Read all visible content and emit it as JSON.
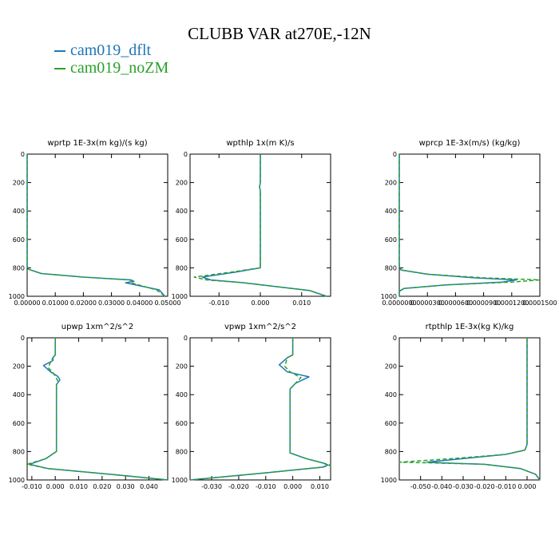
{
  "page": {
    "title": "CLUBB VAR at270E,-12N"
  },
  "legend": [
    {
      "label": "cam019_dflt",
      "color": "#1f77b4"
    },
    {
      "label": "cam019_noZM",
      "color": "#2ca02c"
    }
  ],
  "chart_data": [
    {
      "type": "line",
      "title": "wprtp  1E-3x(m kg)/(s kg)",
      "xlim": [
        0,
        0.05
      ],
      "ylim": [
        1000,
        0
      ],
      "xticks": [
        "0.00000",
        "0.01000",
        "0.02000",
        "0.03000",
        "0.04000",
        "0.05000"
      ],
      "xtick_values": [
        0,
        0.01,
        0.02,
        0.03,
        0.04,
        0.05
      ],
      "yticks": [
        0,
        200,
        400,
        600,
        800,
        1000
      ],
      "series": [
        {
          "name": "cam019_dflt",
          "color": "#1f77b4",
          "dash": false,
          "x": [
            0,
            0,
            0.0005,
            0.005,
            0.02,
            0.037,
            0.038,
            0.035,
            0.047,
            0.049
          ],
          "y": [
            0,
            790,
            810,
            840,
            865,
            885,
            895,
            905,
            955,
            1000
          ]
        },
        {
          "name": "cam019_noZM",
          "color": "#2ca02c",
          "dash": true,
          "x": [
            0,
            0,
            0.0005,
            0.005,
            0.02,
            0.036,
            0.0375,
            0.037,
            0.046,
            0.049
          ],
          "y": [
            0,
            790,
            810,
            840,
            865,
            885,
            890,
            905,
            955,
            1000
          ]
        }
      ]
    },
    {
      "type": "line",
      "title": "wpthlp  1x(m K)/s",
      "xlim": [
        -0.017,
        0.017
      ],
      "ylim": [
        1000,
        0
      ],
      "xticks": [
        "-0.010",
        "0.000",
        "0.010"
      ],
      "xtick_values": [
        -0.01,
        0,
        0.01
      ],
      "yticks": [
        0,
        200,
        400,
        600,
        800,
        1000
      ],
      "series": [
        {
          "name": "cam019_dflt",
          "color": "#1f77b4",
          "dash": false,
          "x": [
            0,
            0,
            -0.0002,
            0,
            0,
            0,
            -0.006,
            -0.014,
            -0.012,
            -0.004,
            0.012,
            0.016
          ],
          "y": [
            0,
            200,
            230,
            260,
            700,
            800,
            830,
            865,
            885,
            905,
            960,
            1000
          ]
        },
        {
          "name": "cam019_noZM",
          "color": "#2ca02c",
          "dash": true,
          "x": [
            0,
            0,
            -0.0002,
            0,
            0,
            0,
            -0.007,
            -0.016,
            -0.013,
            -0.004,
            0.012,
            0.016
          ],
          "y": [
            0,
            200,
            230,
            260,
            700,
            800,
            830,
            865,
            885,
            905,
            960,
            1000
          ]
        }
      ]
    },
    {
      "type": "line",
      "title": "wprcp  1E-3x(m/s) (kg/kg)",
      "xlim": [
        0,
        0.00015
      ],
      "ylim": [
        1000,
        0
      ],
      "xticks": [
        "0.0000000",
        "0.0000300",
        "0.0000600",
        "0.0000900",
        "0.0001200",
        "0.0001500"
      ],
      "xtick_values": [
        0,
        3e-05,
        6e-05,
        9e-05,
        0.00012,
        0.00015
      ],
      "yticks": [
        0,
        200,
        400,
        600,
        800,
        1000
      ],
      "series": [
        {
          "name": "cam019_dflt",
          "color": "#1f77b4",
          "dash": false,
          "x": [
            0,
            0,
            2e-06,
            3e-05,
            8e-05,
            0.000125,
            0.00011,
            5e-05,
            5e-06,
            0,
            0
          ],
          "y": [
            0,
            790,
            815,
            845,
            870,
            885,
            900,
            920,
            945,
            965,
            1000
          ]
        },
        {
          "name": "cam019_noZM",
          "color": "#2ca02c",
          "dash": true,
          "x": [
            0,
            0,
            2e-06,
            3e-05,
            9e-05,
            0.00015,
            0.00012,
            5e-05,
            5e-06,
            0,
            0
          ],
          "y": [
            0,
            790,
            815,
            845,
            870,
            885,
            900,
            920,
            945,
            965,
            1000
          ]
        }
      ]
    },
    {
      "type": "line",
      "title": "upwp  1xm^2/s^2",
      "xlim": [
        -0.012,
        0.048
      ],
      "ylim": [
        1000,
        0
      ],
      "xticks": [
        "-0.010",
        "0.000",
        "0.010",
        "0.020",
        "0.030",
        "0.040"
      ],
      "xtick_values": [
        -0.01,
        0,
        0.01,
        0.02,
        0.03,
        0.04
      ],
      "yticks": [
        0,
        200,
        400,
        600,
        800,
        1000
      ],
      "series": [
        {
          "name": "cam019_dflt",
          "color": "#1f77b4",
          "dash": false,
          "x": [
            0,
            0,
            -0.001,
            -0.001,
            -0.005,
            -0.002,
            0.001,
            0.002,
            0.0005,
            0.0005,
            0.0005,
            -0.004,
            -0.011,
            -0.003,
            0.03,
            0.048
          ],
          "y": [
            0,
            120,
            140,
            160,
            195,
            240,
            270,
            295,
            330,
            360,
            800,
            850,
            890,
            920,
            970,
            1000
          ]
        },
        {
          "name": "cam019_noZM",
          "color": "#2ca02c",
          "dash": true,
          "x": [
            0,
            0,
            -0.001,
            -0.002,
            -0.003,
            -0.001,
            0,
            0.001,
            0.0005,
            0.0005,
            0.0005,
            -0.004,
            -0.012,
            -0.003,
            0.03,
            0.048
          ],
          "y": [
            0,
            120,
            140,
            170,
            210,
            245,
            270,
            300,
            330,
            360,
            800,
            850,
            890,
            920,
            970,
            1000
          ]
        }
      ]
    },
    {
      "type": "line",
      "title": "vpwp  1xm^2/s^2",
      "xlim": [
        -0.038,
        0.014
      ],
      "ylim": [
        1000,
        0
      ],
      "xticks": [
        "-0.030",
        "-0.020",
        "-0.010",
        "0.000",
        "0.010"
      ],
      "xtick_values": [
        -0.03,
        -0.02,
        -0.01,
        0,
        0.01
      ],
      "yticks": [
        0,
        200,
        400,
        600,
        800,
        1000
      ],
      "series": [
        {
          "name": "cam019_dflt",
          "color": "#1f77b4",
          "dash": false,
          "x": [
            0,
            0,
            -0.002,
            -0.005,
            -0.002,
            0.006,
            0.001,
            -0.001,
            -0.001,
            -0.001,
            0.005,
            0.011,
            0.013,
            0.011,
            -0.01,
            -0.038
          ],
          "y": [
            0,
            120,
            140,
            190,
            240,
            275,
            320,
            360,
            780,
            810,
            850,
            880,
            895,
            910,
            950,
            1000
          ]
        },
        {
          "name": "cam019_noZM",
          "color": "#2ca02c",
          "dash": true,
          "x": [
            0,
            0,
            -0.002,
            -0.003,
            -0.001,
            0.003,
            0.001,
            -0.001,
            -0.001,
            -0.001,
            0.005,
            0.011,
            0.014,
            0.011,
            -0.01,
            -0.038
          ],
          "y": [
            0,
            120,
            140,
            200,
            240,
            280,
            320,
            360,
            780,
            810,
            850,
            880,
            895,
            910,
            950,
            1000
          ]
        }
      ]
    },
    {
      "type": "line",
      "title": "rtpthlp  1E-3x(kg K)/kg",
      "xlim": [
        -0.06,
        0.006
      ],
      "ylim": [
        1000,
        0
      ],
      "xticks": [
        "-0.050",
        "-0.040",
        "-0.030",
        "-0.020",
        "-0.010",
        "0.000"
      ],
      "xtick_values": [
        -0.05,
        -0.04,
        -0.03,
        -0.02,
        -0.01,
        0
      ],
      "yticks": [
        0,
        200,
        400,
        600,
        800,
        1000
      ],
      "series": [
        {
          "name": "cam019_dflt",
          "color": "#1f77b4",
          "dash": false,
          "x": [
            0,
            0,
            -0.001,
            -0.01,
            -0.03,
            -0.047,
            -0.04,
            -0.02,
            -0.003,
            0.004,
            0.006
          ],
          "y": [
            0,
            750,
            790,
            820,
            850,
            875,
            880,
            890,
            920,
            960,
            1000
          ]
        },
        {
          "name": "cam019_noZM",
          "color": "#2ca02c",
          "dash": true,
          "x": [
            0,
            0,
            -0.001,
            -0.01,
            -0.035,
            -0.06,
            -0.045,
            -0.02,
            -0.003,
            0.004,
            0.006
          ],
          "y": [
            0,
            750,
            790,
            820,
            850,
            875,
            880,
            890,
            920,
            960,
            1000
          ]
        }
      ]
    }
  ]
}
